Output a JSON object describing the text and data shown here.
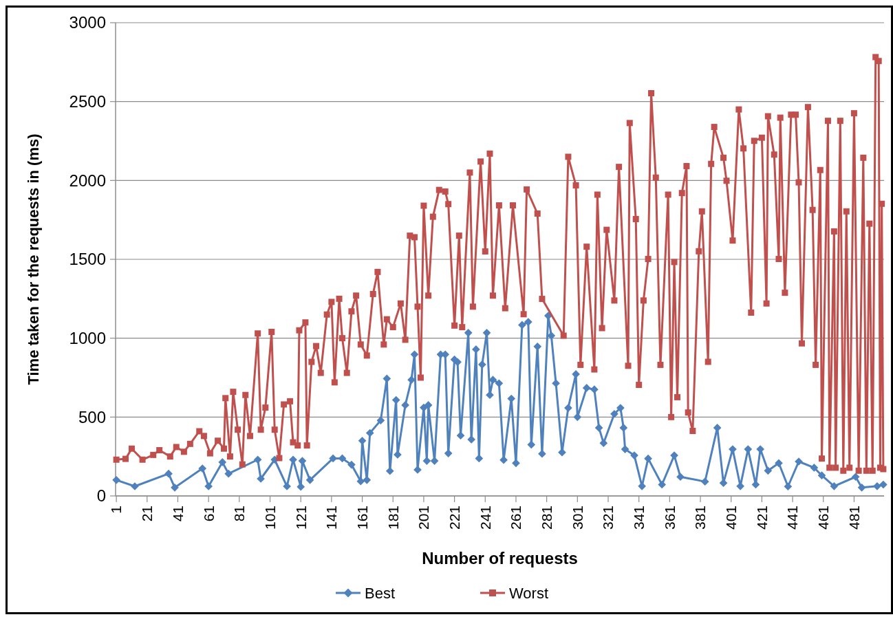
{
  "chart_data": {
    "type": "line",
    "xlabel": "Number of requests",
    "ylabel": "Time taken for the requests in (ms)",
    "xlim": [
      0.5,
      500.5
    ],
    "xticks": [
      1,
      21,
      41,
      61,
      81,
      101,
      121,
      141,
      161,
      181,
      201,
      221,
      241,
      261,
      281,
      301,
      321,
      341,
      361,
      381,
      401,
      421,
      441,
      461,
      481
    ],
    "ylim": [
      0,
      3000
    ],
    "yticks": [
      0,
      500,
      1000,
      1500,
      2000,
      2500,
      3000
    ],
    "grid": "y",
    "legend": "bottom",
    "line_style": "solid",
    "series": [
      {
        "name": "Best",
        "color": "#4f81bd",
        "marker": "diamond",
        "x": [
          1,
          13,
          35,
          39,
          57,
          61,
          70,
          74,
          93,
          95,
          104,
          112,
          116,
          121,
          122,
          127,
          142,
          148,
          154,
          160,
          161,
          164,
          166,
          173,
          177,
          179,
          183,
          184,
          189,
          193,
          195,
          197,
          201,
          203,
          204,
          208,
          212,
          215,
          217,
          221,
          223,
          225,
          230,
          232,
          235,
          237,
          239,
          242,
          244,
          246,
          250,
          253,
          258,
          261,
          265,
          269,
          271,
          275,
          278,
          282,
          284,
          287,
          291,
          295,
          300,
          301,
          307,
          312,
          315,
          318,
          325,
          329,
          331,
          332,
          338,
          343,
          347,
          356,
          364,
          368,
          384,
          392,
          396,
          402,
          407,
          412,
          417,
          420,
          425,
          432,
          438,
          445,
          455,
          460,
          468,
          482,
          486,
          496,
          500
        ],
        "values": [
          101,
          61,
          141,
          53,
          174,
          61,
          214,
          141,
          230,
          109,
          230,
          61,
          230,
          58,
          222,
          101,
          238,
          238,
          198,
          93,
          350,
          101,
          399,
          479,
          744,
          158,
          608,
          262,
          576,
          736,
          897,
          166,
          560,
          222,
          576,
          222,
          897,
          897,
          270,
          865,
          849,
          383,
          1034,
          358,
          929,
          238,
          833,
          1034,
          640,
          736,
          714,
          228,
          617,
          208,
          1084,
          1103,
          325,
          947,
          267,
          1142,
          1016,
          714,
          276,
          558,
          772,
          500,
          685,
          675,
          432,
          335,
          520,
          558,
          432,
          296,
          257,
          62,
          237,
          72,
          257,
          121,
          91,
          432,
          82,
          296,
          62,
          296,
          72,
          296,
          160,
          208,
          60,
          218,
          179,
          130,
          62,
          121,
          53,
          62,
          72
        ]
      },
      {
        "name": "Worst",
        "color": "#c0504d",
        "marker": "square",
        "x": [
          1,
          7,
          11,
          18,
          25,
          29,
          36,
          40,
          45,
          49,
          55,
          58,
          62,
          67,
          71,
          72,
          75,
          77,
          80,
          83,
          85,
          88,
          93,
          95,
          98,
          102,
          104,
          107,
          110,
          114,
          116,
          119,
          120,
          124,
          125,
          128,
          131,
          134,
          138,
          141,
          143,
          146,
          148,
          151,
          154,
          157,
          160,
          164,
          168,
          171,
          175,
          177,
          181,
          186,
          189,
          192,
          195,
          197,
          199,
          201,
          204,
          207,
          211,
          215,
          217,
          221,
          224,
          226,
          231,
          233,
          238,
          241,
          244,
          246,
          250,
          254,
          259,
          266,
          268,
          275,
          278,
          292,
          295,
          300,
          303,
          307,
          312,
          314,
          317,
          320,
          325,
          328,
          334,
          335,
          339,
          341,
          344,
          347,
          349,
          352,
          355,
          360,
          362,
          364,
          366,
          369,
          372,
          373,
          376,
          380,
          382,
          386,
          388,
          390,
          396,
          398,
          402,
          406,
          409,
          414,
          416,
          421,
          424,
          425,
          429,
          432,
          433,
          436,
          440,
          443,
          445,
          447,
          451,
          454,
          456,
          459,
          460,
          464,
          465,
          468,
          469,
          472,
          474,
          476,
          478,
          481,
          484,
          487,
          489,
          491,
          493,
          495,
          497,
          498,
          499,
          500
        ],
        "values": [
          230,
          235,
          300,
          230,
          260,
          290,
          250,
          310,
          280,
          330,
          410,
          380,
          270,
          350,
          300,
          620,
          250,
          660,
          420,
          200,
          640,
          380,
          1030,
          420,
          560,
          1040,
          420,
          240,
          580,
          600,
          340,
          320,
          1050,
          1100,
          320,
          850,
          950,
          780,
          1150,
          1230,
          720,
          1250,
          1000,
          780,
          1170,
          1270,
          960,
          890,
          1280,
          1420,
          960,
          1120,
          1070,
          1220,
          990,
          1650,
          1640,
          1200,
          750,
          1840,
          1270,
          1770,
          1940,
          1930,
          1850,
          1080,
          1650,
          1070,
          2050,
          1200,
          2120,
          1550,
          2170,
          1270,
          1842,
          1190,
          1842,
          1152,
          1943,
          1790,
          1249,
          1016,
          2150,
          1969,
          831,
          1580,
          802,
          1910,
          1064,
          1687,
          1239,
          2086,
          825,
          2364,
          1755,
          704,
          1239,
          1502,
          2553,
          2018,
          831,
          1910,
          500,
          1483,
          626,
          1920,
          2091,
          529,
          412,
          1551,
          1804,
          850,
          2105,
          2339,
          2144,
          1998,
          1619,
          2450,
          2203,
          1162,
          2251,
          2271,
          1220,
          2407,
          2164,
          1502,
          2398,
          1288,
          2417,
          2417,
          1988,
          967,
          2465,
          1813,
          831,
          2066,
          237,
          2378,
          179,
          1677,
          179,
          2378,
          160,
          1804,
          179,
          2426,
          160,
          2144,
          160,
          1726,
          160,
          2782,
          2757,
          179,
          1852,
          170
        ]
      }
    ]
  }
}
